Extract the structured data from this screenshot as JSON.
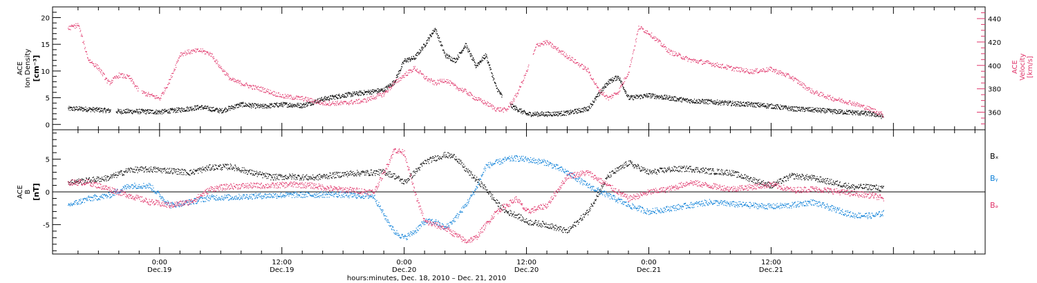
{
  "chart_data": [
    {
      "type": "scatter",
      "panel": "top",
      "ylabel_left": [
        "ACE",
        "Ion Density",
        "[cm⁻³]"
      ],
      "ylabel_right": [
        "ACE",
        "Velocity",
        "[km/s]"
      ],
      "ylim_left": [
        -1,
        22
      ],
      "ylim_right": [
        345,
        450
      ],
      "yticks_left": [
        "0",
        "5",
        "10",
        "15",
        "20"
      ],
      "yticks_right": [
        "360",
        "380",
        "400",
        "420",
        "440"
      ],
      "colors": {
        "density": "#000000",
        "velocity": "#e0346a"
      },
      "series": [
        {
          "name": "Ion Density",
          "axis": "left",
          "color": "#000000",
          "x": [
            -9,
            -8,
            -6,
            -4,
            -2,
            0,
            2,
            4,
            6,
            8,
            10,
            12,
            14,
            16,
            18,
            20,
            22,
            23,
            24,
            25,
            26,
            27,
            28,
            29,
            30,
            31,
            32,
            33,
            34,
            35,
            36,
            38,
            40,
            42,
            44,
            45,
            46,
            48,
            50,
            52,
            54,
            56,
            58,
            60,
            62,
            64,
            66,
            68,
            70,
            71
          ],
          "y": [
            3,
            3,
            2.8,
            2.5,
            2.5,
            2.4,
            2.8,
            3.3,
            2.6,
            3.8,
            3.4,
            3.8,
            3.6,
            4.8,
            5.5,
            6,
            6.5,
            8,
            12,
            12.5,
            15,
            18,
            13,
            12,
            15,
            11,
            13,
            7,
            4,
            3,
            2,
            2,
            2.2,
            3,
            8,
            9,
            5,
            5.5,
            5,
            4.5,
            4.3,
            4,
            3.8,
            3.5,
            3,
            2.8,
            2.5,
            2.3,
            2,
            1.5
          ]
        },
        {
          "name": "Velocity",
          "axis": "right",
          "color": "#e0346a",
          "x": [
            -9,
            -8,
            -7,
            -6,
            -5,
            -4,
            -3,
            -2,
            -1,
            0,
            1,
            2,
            3,
            4,
            5,
            6,
            7,
            8,
            9,
            10,
            11,
            12,
            14,
            16,
            18,
            20,
            22,
            23,
            24,
            25,
            26,
            27,
            28,
            29,
            30,
            31,
            32,
            33,
            34,
            35,
            36,
            37,
            38,
            40,
            42,
            43,
            44,
            45,
            46,
            47,
            48,
            49,
            50,
            52,
            54,
            56,
            58,
            60,
            62,
            64,
            66,
            68,
            70,
            71
          ],
          "y": [
            432,
            435,
            405,
            398,
            385,
            392,
            390,
            378,
            375,
            372,
            388,
            410,
            412,
            413,
            410,
            398,
            388,
            385,
            382,
            380,
            377,
            374,
            372,
            368,
            368,
            370,
            376,
            385,
            392,
            398,
            390,
            385,
            388,
            382,
            378,
            372,
            368,
            363,
            362,
            375,
            395,
            418,
            420,
            408,
            396,
            380,
            372,
            378,
            395,
            433,
            428,
            420,
            412,
            405,
            402,
            398,
            395,
            397,
            390,
            378,
            372,
            368,
            362,
            358
          ]
        }
      ]
    },
    {
      "type": "scatter",
      "panel": "bottom",
      "ylabel_left": [
        "ACE",
        "B",
        "[nT]"
      ],
      "ylim": [
        -9.5,
        9.5
      ],
      "yticks_left": [
        "-5",
        "0",
        "5"
      ],
      "colors": {
        "Bx": "#000000",
        "By": "#0a7fd8",
        "Bz": "#e0346a"
      },
      "legend": [
        "Bₓ",
        "Bᵧ",
        "Bₔ"
      ],
      "series": [
        {
          "name": "Bx",
          "color": "#000000",
          "x": [
            -9,
            -7,
            -5,
            -3,
            -1,
            1,
            3,
            5,
            7,
            9,
            11,
            13,
            15,
            17,
            19,
            21,
            22,
            23,
            24,
            25,
            26,
            27,
            28,
            29,
            30,
            31,
            32,
            33,
            34,
            35,
            36,
            38,
            40,
            42,
            44,
            46,
            48,
            50,
            52,
            54,
            56,
            58,
            60,
            62,
            64,
            66,
            68,
            70,
            71
          ],
          "y": [
            1.5,
            1.8,
            2.2,
            3.4,
            3.5,
            3.3,
            3.0,
            3.8,
            3.9,
            3.0,
            2.3,
            2.4,
            2.2,
            2.6,
            2.9,
            3.0,
            3.1,
            2.5,
            1.5,
            3.0,
            4.6,
            5.2,
            5.7,
            5.4,
            3.5,
            2.0,
            0.5,
            -1.5,
            -3.0,
            -3.5,
            -4.5,
            -5.0,
            -6.0,
            -3.0,
            2.5,
            4.5,
            3.0,
            3.5,
            3.6,
            3.2,
            3.0,
            2.0,
            1.0,
            2.5,
            2.2,
            1.5,
            0.8,
            0.8,
            0.5
          ]
        },
        {
          "name": "By",
          "color": "#0a7fd8",
          "x": [
            -9,
            -7,
            -5,
            -3,
            -1,
            1,
            3,
            5,
            7,
            9,
            11,
            13,
            15,
            17,
            19,
            21,
            22,
            23,
            24,
            25,
            26,
            27,
            28,
            29,
            30,
            31,
            32,
            33,
            34,
            35,
            36,
            38,
            40,
            42,
            44,
            46,
            48,
            50,
            52,
            54,
            56,
            58,
            60,
            62,
            64,
            66,
            68,
            70,
            71
          ],
          "y": [
            -2.0,
            -1.0,
            -0.5,
            1.0,
            1.0,
            -2.0,
            -1.5,
            -0.8,
            -0.8,
            -0.6,
            -0.5,
            -0.4,
            -0.4,
            -0.3,
            -0.5,
            -0.6,
            -3.5,
            -6.0,
            -7.0,
            -6.0,
            -4.5,
            -4.5,
            -5.5,
            -4.0,
            -2.0,
            0.5,
            4.0,
            4.5,
            5.0,
            5.2,
            5.0,
            4.5,
            3.0,
            1.0,
            -0.5,
            -2.0,
            -3.0,
            -2.5,
            -2.0,
            -1.5,
            -1.8,
            -2.0,
            -2.2,
            -2.0,
            -1.5,
            -2.5,
            -3.5,
            -3.6,
            -3.2
          ]
        },
        {
          "name": "Bz",
          "color": "#e0346a",
          "x": [
            -9,
            -7,
            -5,
            -3,
            -1,
            1,
            3,
            5,
            7,
            9,
            11,
            13,
            15,
            17,
            19,
            21,
            22,
            23,
            24,
            25,
            26,
            27,
            28,
            29,
            30,
            31,
            32,
            33,
            34,
            35,
            36,
            38,
            40,
            42,
            44,
            46,
            48,
            50,
            52,
            54,
            56,
            58,
            60,
            62,
            64,
            66,
            68,
            70,
            71
          ],
          "y": [
            1.5,
            1.5,
            0.5,
            -0.5,
            -1.5,
            -2.0,
            -1.5,
            0.5,
            0.9,
            1.0,
            1.0,
            1.2,
            1.0,
            0.5,
            0.3,
            0.0,
            3.0,
            6.5,
            6.0,
            0.0,
            -4.5,
            -5.0,
            -5.5,
            -6.5,
            -7.5,
            -7.0,
            -5.0,
            -3.0,
            -2.0,
            -1.0,
            -3.0,
            -2.0,
            2.5,
            3.0,
            1.0,
            -1.0,
            0.0,
            0.5,
            1.5,
            1.0,
            0.5,
            0.8,
            1.2,
            0.3,
            0.5,
            0.2,
            -0.2,
            -0.5,
            -1.0
          ]
        }
      ]
    }
  ],
  "x_axis": {
    "xlim_hours": [
      -10.5,
      81
    ],
    "tick_times": [
      "0:00",
      "12:00",
      "0:00",
      "12:00",
      "0:00",
      "12:00"
    ],
    "tick_dates": [
      "Dec.19",
      "Dec.19",
      "Dec.20",
      "Dec.20",
      "Dec.21",
      "Dec.21"
    ],
    "tick_hours": [
      0,
      12,
      24,
      36,
      48,
      60
    ],
    "xlabel": "hours:minutes, Dec. 18, 2010 – Dec. 21, 2010"
  }
}
